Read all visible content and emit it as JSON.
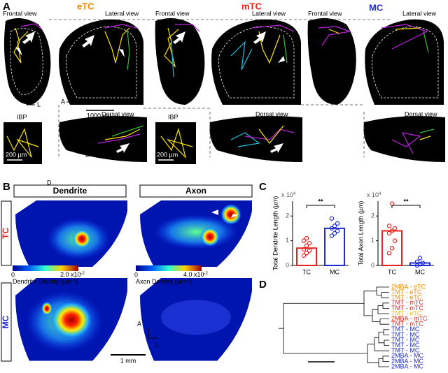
{
  "panel_a": {
    "label": "A",
    "groups": [
      {
        "title": "eTC",
        "color": "#f08a00",
        "frontal": "Frontal view",
        "lateral": "Lateral view",
        "dorsal": "Dorsal view",
        "ibp": "IBP",
        "ibp_scale": "200 µm"
      },
      {
        "title": "mTC",
        "color": "#e8211c",
        "frontal": "Frontal view",
        "lateral": "Lateral view",
        "dorsal": "Dorsal view",
        "ibp": "IBP",
        "ibp_scale": "200 µm"
      },
      {
        "title": "MC",
        "color": "#1f2bd6",
        "frontal": "Frontal view",
        "lateral": "Lateral view",
        "dorsal": "Dorsal view"
      }
    ],
    "scale_bar": "1000 µm",
    "compass_frontal": [
      "D",
      "L"
    ],
    "compass_lateral": [
      "A"
    ],
    "compass_ibp": [
      "D",
      "A"
    ],
    "compass_dorsal": [
      "A",
      "L"
    ]
  },
  "panel_b": {
    "label": "B",
    "columns": [
      "Dendrite",
      "Axon"
    ],
    "rows": [
      "TC",
      "MC"
    ],
    "colorbars": [
      {
        "min": "0",
        "max": "2.0 x10",
        "max_exp": "-2",
        "label": [
          "Dendrite Density (µm",
          "-1",
          ")"
        ]
      },
      {
        "min": "0",
        "max": "4.0 x10",
        "max_exp": "-2",
        "label": [
          "Axon Density (µm",
          "-1",
          ")"
        ]
      }
    ],
    "compass": [
      "A",
      "L"
    ],
    "scale_bar": "1 mm"
  },
  "panel_c": {
    "label": "C",
    "charts": [
      {
        "type": "bar",
        "ylabel": "Total Dendrite Length (µm)",
        "multiplier": "x 10",
        "multiplier_exp": "4",
        "categories": [
          "TC",
          "MC"
        ],
        "values": [
          0.7,
          1.5
        ],
        "colors": [
          "#e8211c",
          "#1f2bd6"
        ],
        "points": [
          [
            0.4,
            0.5,
            0.6,
            0.65,
            0.8,
            0.9,
            1.0,
            1.1
          ],
          [
            1.2,
            1.3,
            1.4,
            1.5,
            1.6,
            1.7,
            1.9
          ]
        ],
        "ylim": [
          0,
          2.6
        ],
        "yticks": [
          0,
          1,
          2
        ],
        "significance": "**"
      },
      {
        "type": "bar",
        "ylabel": "Total Axon Length (µm)",
        "multiplier": "x 10",
        "multiplier_exp": "4",
        "categories": [
          "TC",
          "MC"
        ],
        "values": [
          1.4,
          0.1
        ],
        "colors": [
          "#e8211c",
          "#1f2bd6"
        ],
        "points": [
          [
            0.5,
            0.7,
            1.0,
            1.3,
            1.4,
            1.5,
            1.6,
            2.5
          ],
          [
            0.0,
            0.05,
            0.1,
            0.15,
            0.3
          ]
        ],
        "ylim": [
          0,
          2.6
        ],
        "yticks": [
          0,
          1,
          2
        ],
        "significance": "**"
      }
    ]
  },
  "panel_d": {
    "label": "D",
    "leaves": [
      {
        "text": "2MBA - eTC",
        "color": "#f08a00"
      },
      {
        "text": "TMT - eTC",
        "color": "#f08a00"
      },
      {
        "text": "TMT - eTC",
        "color": "#f08a00"
      },
      {
        "text": "TMT - mTC",
        "color": "#e8211c"
      },
      {
        "text": "TMT - mTC",
        "color": "#e8211c"
      },
      {
        "text": "TMT - eTC",
        "color": "#f2c200"
      },
      {
        "text": "2MBA - mTC",
        "color": "#e8211c"
      },
      {
        "text": "TMT - mTC",
        "color": "#e8211c"
      },
      {
        "text": "TMT - MC",
        "color": "#1f2bd6"
      },
      {
        "text": "TMT - MC",
        "color": "#1f2bd6"
      },
      {
        "text": "TMT - MC",
        "color": "#1f2bd6"
      },
      {
        "text": "TMT - MC",
        "color": "#1f2bd6"
      },
      {
        "text": "TMT - MC",
        "color": "#1f2bd6"
      },
      {
        "text": "2MBA - MC",
        "color": "#1f2bd6"
      },
      {
        "text": "2MBA - MC",
        "color": "#1f2bd6"
      },
      {
        "text": "2MBA - MC",
        "color": "#1f2bd6"
      }
    ]
  }
}
